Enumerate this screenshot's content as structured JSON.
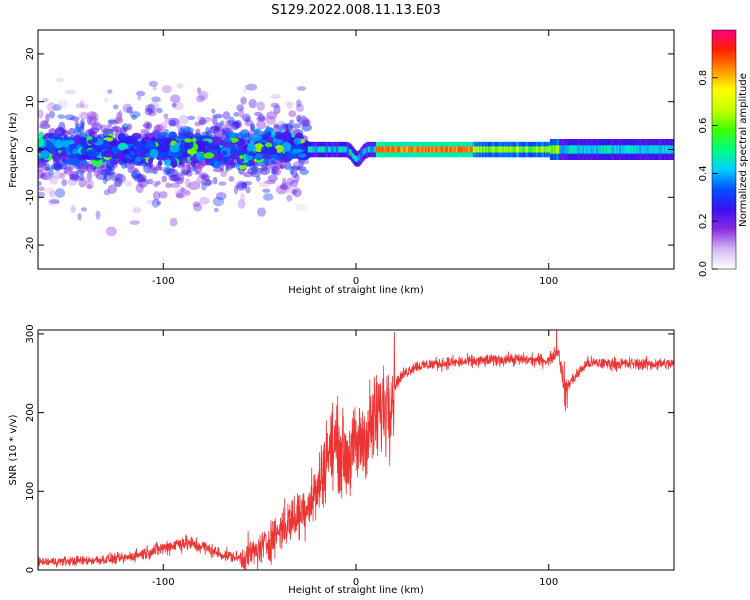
{
  "title": "S129.2022.008.11.13.E03",
  "chart_data": [
    {
      "type": "heatmap",
      "xlabel": "Height of straight line (km)",
      "ylabel": "Frequency (Hz)",
      "xlim": [
        -165,
        165
      ],
      "ylim": [
        -25,
        25
      ],
      "xticks": [
        -100,
        0,
        100
      ],
      "yticks": [
        -20,
        -10,
        0,
        10,
        20
      ],
      "colorbar": {
        "label": "Normalized spectral amplitude",
        "range": [
          0,
          1
        ],
        "ticks": [
          "0.0",
          "0.2",
          "0.4",
          "0.6",
          "0.8"
        ],
        "tick_values": [
          0,
          0.2,
          0.4,
          0.6,
          0.8
        ],
        "colors": [
          "#ffffff",
          "#d5b8f2",
          "#8a2be2",
          "#3a10f0",
          "#0050ff",
          "#00d0ff",
          "#00ff80",
          "#40ff00",
          "#c8ff00",
          "#ffff00",
          "#ff9000",
          "#ff2000",
          "#ff0080"
        ]
      },
      "regions": [
        {
          "x_range": [
            -165,
            -25
          ],
          "y_spread": 25,
          "amplitude": "scattered low-moderate, intense band near 0 Hz"
        },
        {
          "x_range": [
            -25,
            165
          ],
          "y_spread": 2,
          "amplitude": "narrow continuous carrier near 0 Hz, peak ~0.9 between 15 and 60"
        }
      ]
    },
    {
      "type": "line",
      "xlabel": "Height of straight line (km)",
      "ylabel": "SNR (10 * v/v)",
      "xlim": [
        -165,
        165
      ],
      "ylim": [
        0,
        305
      ],
      "xticks": [
        -100,
        0,
        100
      ],
      "yticks": [
        0,
        100,
        200,
        300
      ],
      "color": "#ee3333",
      "x": [
        -165,
        -140,
        -120,
        -100,
        -90,
        -80,
        -70,
        -60,
        -50,
        -40,
        -30,
        -20,
        -15,
        -10,
        -5,
        0,
        5,
        10,
        15,
        20,
        25,
        30,
        40,
        60,
        80,
        100,
        105,
        108,
        120,
        140,
        165
      ],
      "y": [
        10,
        12,
        15,
        28,
        35,
        30,
        20,
        15,
        25,
        50,
        70,
        100,
        150,
        160,
        140,
        155,
        170,
        190,
        210,
        235,
        250,
        258,
        262,
        265,
        268,
        266,
        280,
        230,
        263,
        262,
        262
      ]
    }
  ]
}
